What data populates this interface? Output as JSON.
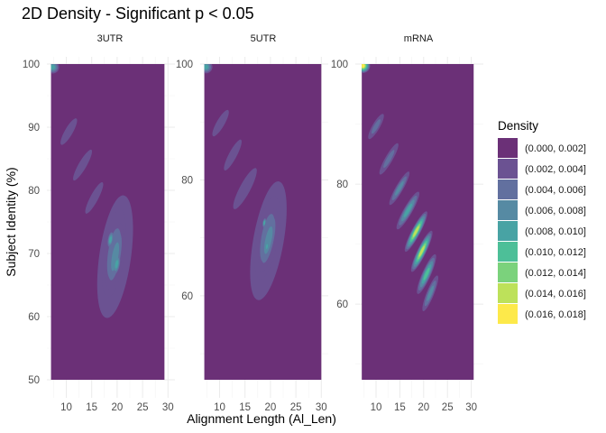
{
  "chart_data": {
    "type": "heatmap",
    "subtype": "2d-density-filled-contour-faceted",
    "title": "2D Density - Significant p < 0.05",
    "xlabel": "Alignment Length (Al_Len)",
    "ylabel": "Subject Identity (%)",
    "grid": true,
    "legend": {
      "title": "Density",
      "placement": "right",
      "entries": [
        {
          "label": "(0.000, 0.002]",
          "color": "#6b3077"
        },
        {
          "label": "(0.002, 0.004]",
          "color": "#6b5292"
        },
        {
          "label": "(0.004, 0.006]",
          "color": "#62709f"
        },
        {
          "label": "(0.006, 0.008]",
          "color": "#568aa3"
        },
        {
          "label": "(0.008, 0.010]",
          "color": "#48a3a4"
        },
        {
          "label": "(0.010, 0.012]",
          "color": "#4dbf98"
        },
        {
          "label": "(0.012, 0.014]",
          "color": "#7bd27c"
        },
        {
          "label": "(0.014, 0.016]",
          "color": "#bde15a"
        },
        {
          "label": "(0.016, 0.018]",
          "color": "#fde94a"
        }
      ]
    },
    "facets": [
      {
        "label": "3UTR",
        "xlim": [
          6.9,
          30.3
        ],
        "ylim": [
          50,
          100
        ],
        "data_extent": {
          "x": [
            7,
            29.3
          ],
          "y": [
            50,
            100
          ]
        },
        "xticks": [
          10,
          15,
          20,
          25,
          30
        ],
        "yticks": [
          50,
          60,
          70,
          80,
          90,
          100
        ],
        "blobs": [
          {
            "x": 7.3,
            "y": 99.5,
            "sx": 1.0,
            "sy": 1.0,
            "rot": 0,
            "max_level": 4
          },
          {
            "x": 10.5,
            "y": 89.3,
            "sx": 0.6,
            "sy": 2.4,
            "rot": 30,
            "max_level": 1
          },
          {
            "x": 13.2,
            "y": 84.0,
            "sx": 0.6,
            "sy": 2.8,
            "rot": 30,
            "max_level": 1
          },
          {
            "x": 15.5,
            "y": 78.8,
            "sx": 0.6,
            "sy": 2.8,
            "rot": 28,
            "max_level": 1
          },
          {
            "x": 19.6,
            "y": 69.5,
            "sx": 2.4,
            "sy": 9.8,
            "rot": 8,
            "max_level": 1
          },
          {
            "x": 19.4,
            "y": 70.0,
            "sx": 1.6,
            "sy": 7.0,
            "rot": 8,
            "max_level": 2
          },
          {
            "x": 19.6,
            "y": 69.5,
            "sx": 1.1,
            "sy": 5.3,
            "rot": 10,
            "max_level": 3
          },
          {
            "x": 18.7,
            "y": 72.2,
            "sx": 0.5,
            "sy": 1.5,
            "rot": 10,
            "max_level": 4
          },
          {
            "x": 19.9,
            "y": 68.3,
            "sx": 0.6,
            "sy": 1.9,
            "rot": 10,
            "max_level": 4
          }
        ]
      },
      {
        "label": "5UTR",
        "xlim": [
          6.9,
          30.3
        ],
        "ylim": [
          45.5,
          100
        ],
        "data_extent": {
          "x": [
            7,
            30
          ],
          "y": [
            45.5,
            100
          ]
        },
        "xticks": [
          10,
          15,
          20,
          25,
          30
        ],
        "yticks": [
          60,
          80,
          100
        ],
        "blobs": [
          {
            "x": 7.3,
            "y": 99.5,
            "sx": 1.0,
            "sy": 1.1,
            "rot": 0,
            "max_level": 4
          },
          {
            "x": 10.2,
            "y": 89.8,
            "sx": 0.6,
            "sy": 2.6,
            "rot": 30,
            "max_level": 1
          },
          {
            "x": 12.6,
            "y": 84.3,
            "sx": 0.6,
            "sy": 3.0,
            "rot": 28,
            "max_level": 1
          },
          {
            "x": 15.0,
            "y": 78.5,
            "sx": 0.8,
            "sy": 4.0,
            "rot": 28,
            "max_level": 1
          },
          {
            "x": 19.6,
            "y": 69.5,
            "sx": 2.3,
            "sy": 10.4,
            "rot": 10,
            "max_level": 1
          },
          {
            "x": 19.4,
            "y": 70.0,
            "sx": 1.6,
            "sy": 7.3,
            "rot": 10,
            "max_level": 2
          },
          {
            "x": 19.6,
            "y": 69.6,
            "sx": 1.1,
            "sy": 5.6,
            "rot": 12,
            "max_level": 3
          },
          {
            "x": 18.8,
            "y": 72.6,
            "sx": 0.3,
            "sy": 1.0,
            "rot": 10,
            "max_level": 4
          },
          {
            "x": 19.3,
            "y": 68.5,
            "sx": 0.4,
            "sy": 1.2,
            "rot": 10,
            "max_level": 4
          }
        ]
      },
      {
        "label": "mRNA",
        "xlim": [
          6.4,
          31.4
        ],
        "ylim": [
          47.4,
          100
        ],
        "data_extent": {
          "x": [
            7,
            30.5
          ],
          "y": [
            47.4,
            100
          ]
        },
        "xticks": [
          10,
          15,
          20,
          25,
          30
        ],
        "yticks": [
          60,
          80,
          100
        ],
        "blobs": [
          {
            "x": 7.2,
            "y": 99.7,
            "sx": 1.2,
            "sy": 1.2,
            "rot": 0,
            "max_level": 8
          },
          {
            "x": 10.0,
            "y": 89.6,
            "sx": 0.6,
            "sy": 2.4,
            "rot": 30,
            "max_level": 2
          },
          {
            "x": 12.7,
            "y": 84.2,
            "sx": 0.6,
            "sy": 3.0,
            "rot": 30,
            "max_level": 2
          },
          {
            "x": 14.9,
            "y": 79.3,
            "sx": 0.6,
            "sy": 3.2,
            "rot": 30,
            "max_level": 3
          },
          {
            "x": 16.7,
            "y": 75.6,
            "sx": 0.7,
            "sy": 3.6,
            "rot": 30,
            "max_level": 4
          },
          {
            "x": 18.4,
            "y": 72.1,
            "sx": 0.7,
            "sy": 3.8,
            "rot": 28,
            "max_level": 7
          },
          {
            "x": 19.6,
            "y": 68.8,
            "sx": 0.7,
            "sy": 3.8,
            "rot": 26,
            "max_level": 7
          },
          {
            "x": 20.6,
            "y": 65.0,
            "sx": 0.7,
            "sy": 3.6,
            "rot": 24,
            "max_level": 5
          },
          {
            "x": 21.4,
            "y": 61.8,
            "sx": 0.6,
            "sy": 3.2,
            "rot": 22,
            "max_level": 3
          }
        ]
      }
    ]
  }
}
